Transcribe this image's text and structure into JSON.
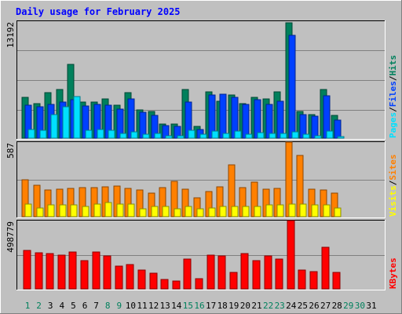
{
  "chart_data": [
    {
      "type": "bar",
      "title": "Daily usage for February 2025",
      "panel": "hits-files-pages",
      "categories": [
        "1",
        "2",
        "3",
        "4",
        "5",
        "6",
        "7",
        "8",
        "9",
        "10",
        "11",
        "12",
        "13",
        "14",
        "15",
        "16",
        "17",
        "18",
        "19",
        "20",
        "21",
        "22",
        "23",
        "24",
        "25",
        "26",
        "27",
        "28",
        "29",
        "30",
        "31"
      ],
      "weekend_days": [
        "1",
        "2",
        "8",
        "9",
        "15",
        "16",
        "22",
        "23",
        "29",
        "30"
      ],
      "ymax_label": "13192",
      "ylim": [
        0,
        13192
      ],
      "grid": true,
      "legend": "right, vertical",
      "series": [
        {
          "name": "Hits",
          "color": "#00805c",
          "values": [
            4600,
            3900,
            5100,
            5500,
            8300,
            4100,
            4100,
            4400,
            3700,
            5100,
            3200,
            3000,
            1600,
            1600,
            5500,
            1300,
            5200,
            4200,
            4900,
            3900,
            4600,
            4400,
            5200,
            13000,
            3000,
            2700,
            5500,
            2600,
            0,
            0,
            0
          ]
        },
        {
          "name": "Files",
          "color": "#0040ff",
          "values": [
            3700,
            3500,
            3800,
            4100,
            4300,
            3600,
            3800,
            3700,
            3300,
            4400,
            2900,
            2600,
            1400,
            1300,
            4100,
            1000,
            4900,
            5000,
            4600,
            3800,
            4300,
            3800,
            4200,
            11600,
            2700,
            2500,
            4800,
            2000,
            0,
            0,
            0
          ]
        },
        {
          "name": "Pages",
          "color": "#00e0ff",
          "values": [
            1000,
            900,
            2700,
            3500,
            4700,
            900,
            1000,
            900,
            500,
            700,
            400,
            500,
            300,
            300,
            900,
            400,
            800,
            500,
            800,
            400,
            600,
            500,
            500,
            700,
            400,
            300,
            800,
            200,
            0,
            0,
            0
          ]
        }
      ]
    },
    {
      "type": "bar",
      "panel": "sites-visits",
      "categories": [
        "1",
        "2",
        "3",
        "4",
        "5",
        "6",
        "7",
        "8",
        "9",
        "10",
        "11",
        "12",
        "13",
        "14",
        "15",
        "16",
        "17",
        "18",
        "19",
        "20",
        "21",
        "22",
        "23",
        "24",
        "25",
        "26",
        "27",
        "28",
        "29",
        "30",
        "31"
      ],
      "ymax_label": "587",
      "ylim": [
        0,
        587
      ],
      "grid": true,
      "legend": "right, vertical",
      "series": [
        {
          "name": "Sites",
          "color": "#ff8000",
          "values": [
            292,
            248,
            210,
            214,
            220,
            226,
            228,
            234,
            238,
            220,
            212,
            183,
            230,
            280,
            215,
            150,
            200,
            236,
            409,
            226,
            271,
            219,
            225,
            587,
            479,
            215,
            208,
            185,
            0,
            0,
            0
          ]
        },
        {
          "name": "Visits",
          "color": "#ffff00",
          "values": [
            100,
            70,
            90,
            90,
            90,
            80,
            100,
            110,
            100,
            100,
            60,
            80,
            80,
            60,
            80,
            60,
            70,
            80,
            80,
            80,
            80,
            90,
            90,
            100,
            100,
            90,
            90,
            70,
            0,
            0,
            0
          ]
        }
      ]
    },
    {
      "type": "bar",
      "panel": "kbytes",
      "categories": [
        "1",
        "2",
        "3",
        "4",
        "5",
        "6",
        "7",
        "8",
        "9",
        "10",
        "11",
        "12",
        "13",
        "14",
        "15",
        "16",
        "17",
        "18",
        "19",
        "20",
        "21",
        "22",
        "23",
        "24",
        "25",
        "26",
        "27",
        "28",
        "29",
        "30",
        "31"
      ],
      "ymax_label": "498779",
      "ylim": [
        0,
        498779
      ],
      "grid": true,
      "legend": "right, vertical",
      "series": [
        {
          "name": "KBytes",
          "color": "#ff0000",
          "values": [
            283000,
            265000,
            257000,
            245000,
            269000,
            206000,
            268000,
            243000,
            165000,
            176000,
            137000,
            113000,
            67000,
            56000,
            219000,
            77000,
            245000,
            243000,
            121000,
            259000,
            206000,
            238000,
            216000,
            498779,
            136000,
            125000,
            306000,
            118000,
            0,
            0,
            0
          ]
        }
      ]
    }
  ]
}
